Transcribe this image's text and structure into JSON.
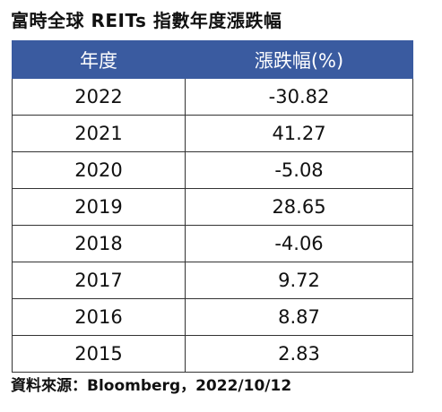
{
  "title": "富時全球 REITs 指數年度漲跌幅",
  "table": {
    "headers": [
      "年度",
      "漲跌幅(%)"
    ],
    "rows": [
      {
        "year": "2022",
        "change": "-30.82"
      },
      {
        "year": "2021",
        "change": "41.27"
      },
      {
        "year": "2020",
        "change": "-5.08"
      },
      {
        "year": "2019",
        "change": "28.65"
      },
      {
        "year": "2018",
        "change": "-4.06"
      },
      {
        "year": "2017",
        "change": "9.72"
      },
      {
        "year": "2016",
        "change": "8.87"
      },
      {
        "year": "2015",
        "change": "2.83"
      }
    ]
  },
  "source": "資料來源：Bloomberg，2022/10/12",
  "colors": {
    "header_bg": "#3a5ba0",
    "header_text": "#ffffff",
    "border": "#333333"
  }
}
